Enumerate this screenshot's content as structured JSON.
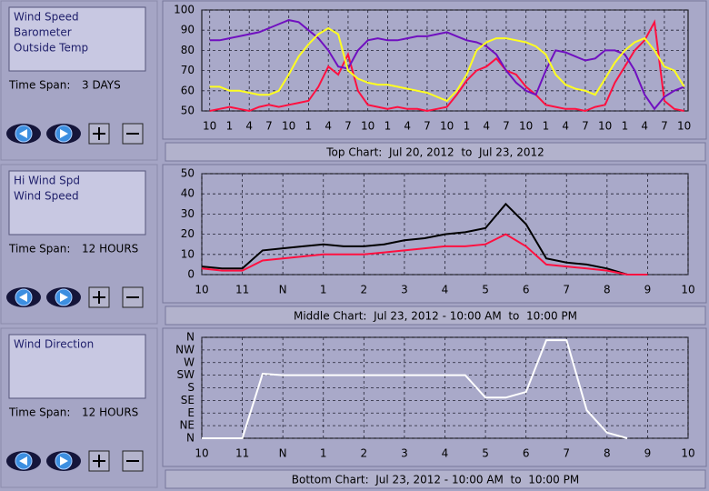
{
  "panels": [
    {
      "time_span_label": "Time Span:",
      "time_span": "3 DAYS"
    },
    {
      "time_span_label": "Time Span:",
      "time_span": "12 HOURS"
    },
    {
      "time_span_label": "Time Span:",
      "time_span": "12 HOURS"
    }
  ],
  "chart_data": [
    {
      "type": "line",
      "caption": "Top Chart:  Jul 20, 2012  to  Jul 23, 2012",
      "grid": true,
      "x": [
        0,
        1.5,
        3,
        4.5,
        6,
        7.5,
        9,
        10.5,
        12,
        13.5,
        15,
        16.5,
        18,
        19.5,
        21,
        22.5,
        24,
        25.5,
        27,
        28.5,
        30,
        31.5,
        33,
        34.5,
        36,
        37.5,
        39,
        40.5,
        42,
        43.5,
        45,
        46.5,
        48,
        49.5,
        51,
        52.5,
        54,
        55.5,
        57,
        58.5,
        60,
        61.5,
        63,
        64.5,
        66,
        67.5,
        69,
        70.5,
        72
      ],
      "xlim": [
        -1.2,
        72.6
      ],
      "xticks": [
        {
          "value": 0,
          "label": "10"
        },
        {
          "value": 3,
          "label": "1"
        },
        {
          "value": 6,
          "label": "4"
        },
        {
          "value": 9,
          "label": "7"
        },
        {
          "value": 12,
          "label": "10"
        },
        {
          "value": 15,
          "label": "1"
        },
        {
          "value": 18,
          "label": "4"
        },
        {
          "value": 21,
          "label": "7"
        },
        {
          "value": 24,
          "label": "10"
        },
        {
          "value": 27,
          "label": "1"
        },
        {
          "value": 30,
          "label": "4"
        },
        {
          "value": 33,
          "label": "7"
        },
        {
          "value": 36,
          "label": "10"
        },
        {
          "value": 39,
          "label": "1"
        },
        {
          "value": 42,
          "label": "4"
        },
        {
          "value": 45,
          "label": "7"
        },
        {
          "value": 48,
          "label": "10"
        },
        {
          "value": 51,
          "label": "1"
        },
        {
          "value": 54,
          "label": "4"
        },
        {
          "value": 57,
          "label": "7"
        },
        {
          "value": 60,
          "label": "10"
        },
        {
          "value": 63,
          "label": "1"
        },
        {
          "value": 66,
          "label": "4"
        },
        {
          "value": 69,
          "label": "7"
        },
        {
          "value": 72,
          "label": "10"
        }
      ],
      "ylim": [
        50,
        100
      ],
      "yticks": [
        50,
        60,
        70,
        80,
        90,
        100
      ],
      "series": [
        {
          "name": "Wind Speed",
          "color": "#ff1040",
          "values": [
            50,
            51,
            52,
            51,
            50,
            52,
            53,
            52,
            53,
            54,
            55,
            62,
            72,
            68,
            78,
            60,
            53,
            52,
            51,
            52,
            51,
            51,
            50,
            51,
            52,
            58,
            65,
            70,
            72,
            76,
            70,
            68,
            62,
            58,
            53,
            52,
            51,
            51,
            50,
            52,
            53,
            64,
            72,
            80,
            85,
            94,
            55,
            51,
            50
          ]
        },
        {
          "name": "Barometer",
          "color": "#7010c0",
          "values": [
            85,
            85,
            86,
            87,
            88,
            89,
            91,
            93,
            95,
            94,
            90,
            86,
            80,
            72,
            71,
            80,
            85,
            86,
            85,
            85,
            86,
            87,
            87,
            88,
            89,
            87,
            85,
            84,
            82,
            78,
            70,
            64,
            60,
            58,
            70,
            80,
            79,
            77,
            75,
            76,
            80,
            80,
            78,
            70,
            58,
            51,
            57,
            60,
            62
          ]
        },
        {
          "name": "Outside Temp",
          "color": "#ffff20",
          "values": [
            62,
            62,
            60,
            60,
            59,
            58,
            58,
            60,
            68,
            77,
            83,
            88,
            91,
            88,
            70,
            66,
            64,
            63,
            63,
            62,
            61,
            60,
            59,
            57,
            55,
            60,
            68,
            80,
            84,
            86,
            86,
            85,
            84,
            82,
            78,
            68,
            63,
            61,
            60,
            58,
            66,
            74,
            80,
            84,
            86,
            80,
            72,
            70,
            62
          ]
        }
      ]
    },
    {
      "type": "line",
      "caption": "Middle Chart:  Jul 23, 2012 - 10:00 AM  to  10:00 PM",
      "grid": true,
      "x": [
        10,
        10.5,
        11,
        11.5,
        12,
        12.5,
        13,
        13.5,
        14,
        14.5,
        15,
        15.5,
        16,
        16.5,
        17,
        17.5,
        18,
        18.5,
        19,
        19.5,
        20,
        20.5,
        21,
        21.5,
        22
      ],
      "xlim": [
        10,
        22
      ],
      "xticks": [
        10,
        11,
        {
          "value": 12,
          "label": "N"
        },
        {
          "value": 13,
          "label": "1"
        },
        {
          "value": 14,
          "label": "2"
        },
        {
          "value": 15,
          "label": "3"
        },
        {
          "value": 16,
          "label": "4"
        },
        {
          "value": 17,
          "label": "5"
        },
        {
          "value": 18,
          "label": "6"
        },
        {
          "value": 19,
          "label": "7"
        },
        {
          "value": 20,
          "label": "8"
        },
        {
          "value": 21,
          "label": "9"
        },
        {
          "value": 22,
          "label": "10"
        }
      ],
      "ylim": [
        0,
        50
      ],
      "yticks": [
        0,
        10,
        20,
        30,
        40,
        50
      ],
      "series": [
        {
          "name": "Hi Wind Spd",
          "color": "#000000",
          "values": [
            4,
            3,
            3,
            12,
            13,
            14,
            15,
            14,
            14,
            15,
            17,
            18,
            20,
            21,
            23,
            35,
            25,
            8,
            6,
            5,
            3,
            0,
            0,
            null,
            null
          ]
        },
        {
          "name": "Wind Speed",
          "color": "#ff1040",
          "values": [
            3,
            2,
            2,
            7,
            8,
            9,
            10,
            10,
            10,
            11,
            12,
            13,
            14,
            14,
            15,
            20,
            14,
            5,
            4,
            3,
            2,
            0,
            0,
            null,
            null
          ]
        }
      ]
    },
    {
      "type": "line",
      "caption": "Bottom Chart:  Jul 23, 2012 - 10:00 AM  to  10:00 PM",
      "grid": true,
      "x": [
        10,
        10.5,
        11,
        11.5,
        12,
        12.5,
        13,
        13.5,
        14,
        14.5,
        15,
        15.5,
        16,
        16.5,
        17,
        17.5,
        18,
        18.5,
        19,
        19.5,
        20,
        20.5,
        21,
        21.5,
        22
      ],
      "xlim": [
        10,
        22
      ],
      "xticks": [
        10,
        11,
        {
          "value": 12,
          "label": "N"
        },
        {
          "value": 13,
          "label": "1"
        },
        {
          "value": 14,
          "label": "2"
        },
        {
          "value": 15,
          "label": "3"
        },
        {
          "value": 16,
          "label": "4"
        },
        {
          "value": 17,
          "label": "5"
        },
        {
          "value": 18,
          "label": "6"
        },
        {
          "value": 19,
          "label": "7"
        },
        {
          "value": 20,
          "label": "8"
        },
        {
          "value": 21,
          "label": "9"
        },
        {
          "value": 22,
          "label": "10"
        }
      ],
      "ylim": [
        0,
        360
      ],
      "yticks": [
        {
          "value": 0,
          "label": "N"
        },
        {
          "value": 45,
          "label": "NE"
        },
        {
          "value": 90,
          "label": "E"
        },
        {
          "value": 135,
          "label": "SE"
        },
        {
          "value": 180,
          "label": "S"
        },
        {
          "value": 225,
          "label": "SW"
        },
        {
          "value": 270,
          "label": "W"
        },
        {
          "value": 315,
          "label": "NW"
        },
        {
          "value": 360,
          "label": "N"
        }
      ],
      "series": [
        {
          "name": "Wind Direction",
          "color": "#ffffff",
          "values": [
            0,
            0,
            0,
            230,
            225,
            225,
            225,
            225,
            225,
            225,
            225,
            225,
            225,
            225,
            145,
            145,
            165,
            350,
            350,
            100,
            20,
            0,
            null,
            null,
            null
          ]
        }
      ]
    }
  ]
}
